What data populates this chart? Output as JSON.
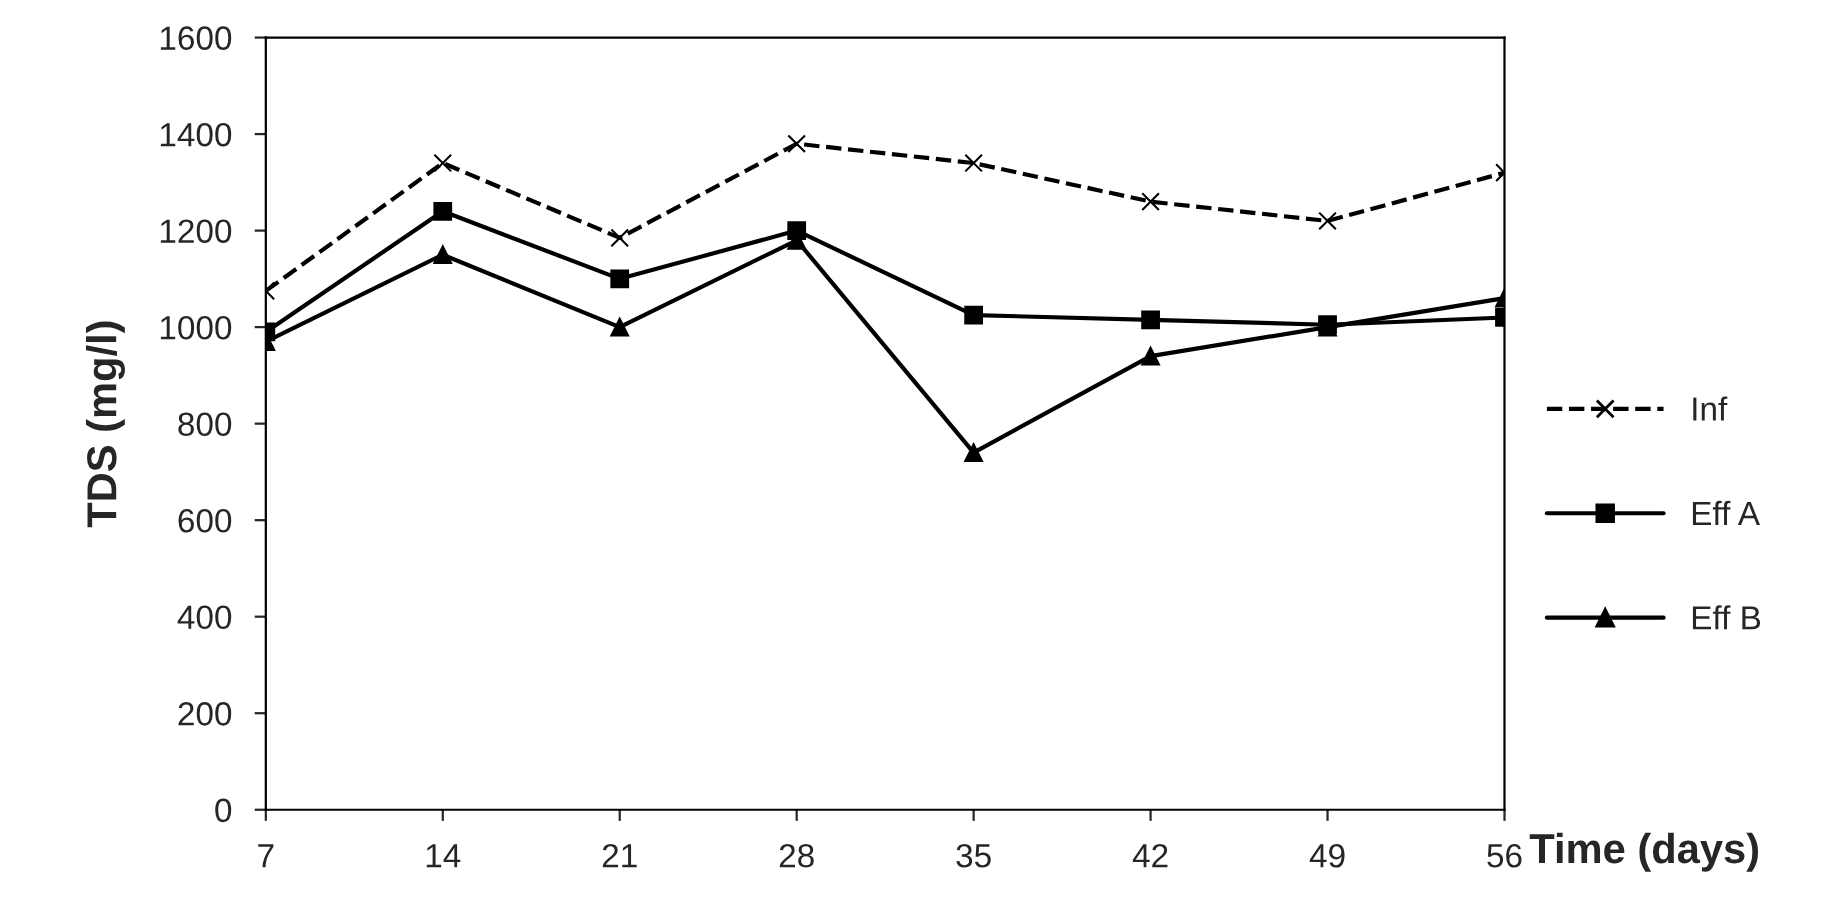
{
  "chart_data": {
    "type": "line",
    "xlabel": "Time (days)",
    "ylabel": "TDS (mg/l)",
    "x": [
      7,
      14,
      21,
      28,
      35,
      42,
      49,
      56
    ],
    "xlim": [
      7,
      56
    ],
    "xticks": [
      7,
      14,
      21,
      28,
      35,
      42,
      49,
      56
    ],
    "ylim": [
      0,
      1600
    ],
    "yticks": [
      0,
      200,
      400,
      600,
      800,
      1000,
      1200,
      1400,
      1600
    ],
    "grid": false,
    "legend": "right",
    "series": [
      {
        "name": "Inf",
        "color": "#000000",
        "marker": "cross",
        "line_style": "dashed",
        "values": [
          1075,
          1340,
          1185,
          1380,
          1340,
          1260,
          1220,
          1320
        ]
      },
      {
        "name": "Eff A",
        "color": "#000000",
        "marker": "square",
        "line_style": "solid",
        "values": [
          990,
          1240,
          1100,
          1200,
          1025,
          1015,
          1005,
          1020
        ]
      },
      {
        "name": "Eff B",
        "color": "#000000",
        "marker": "triangle",
        "line_style": "solid",
        "values": [
          970,
          1150,
          1000,
          1180,
          740,
          940,
          1000,
          1060
        ]
      }
    ]
  }
}
